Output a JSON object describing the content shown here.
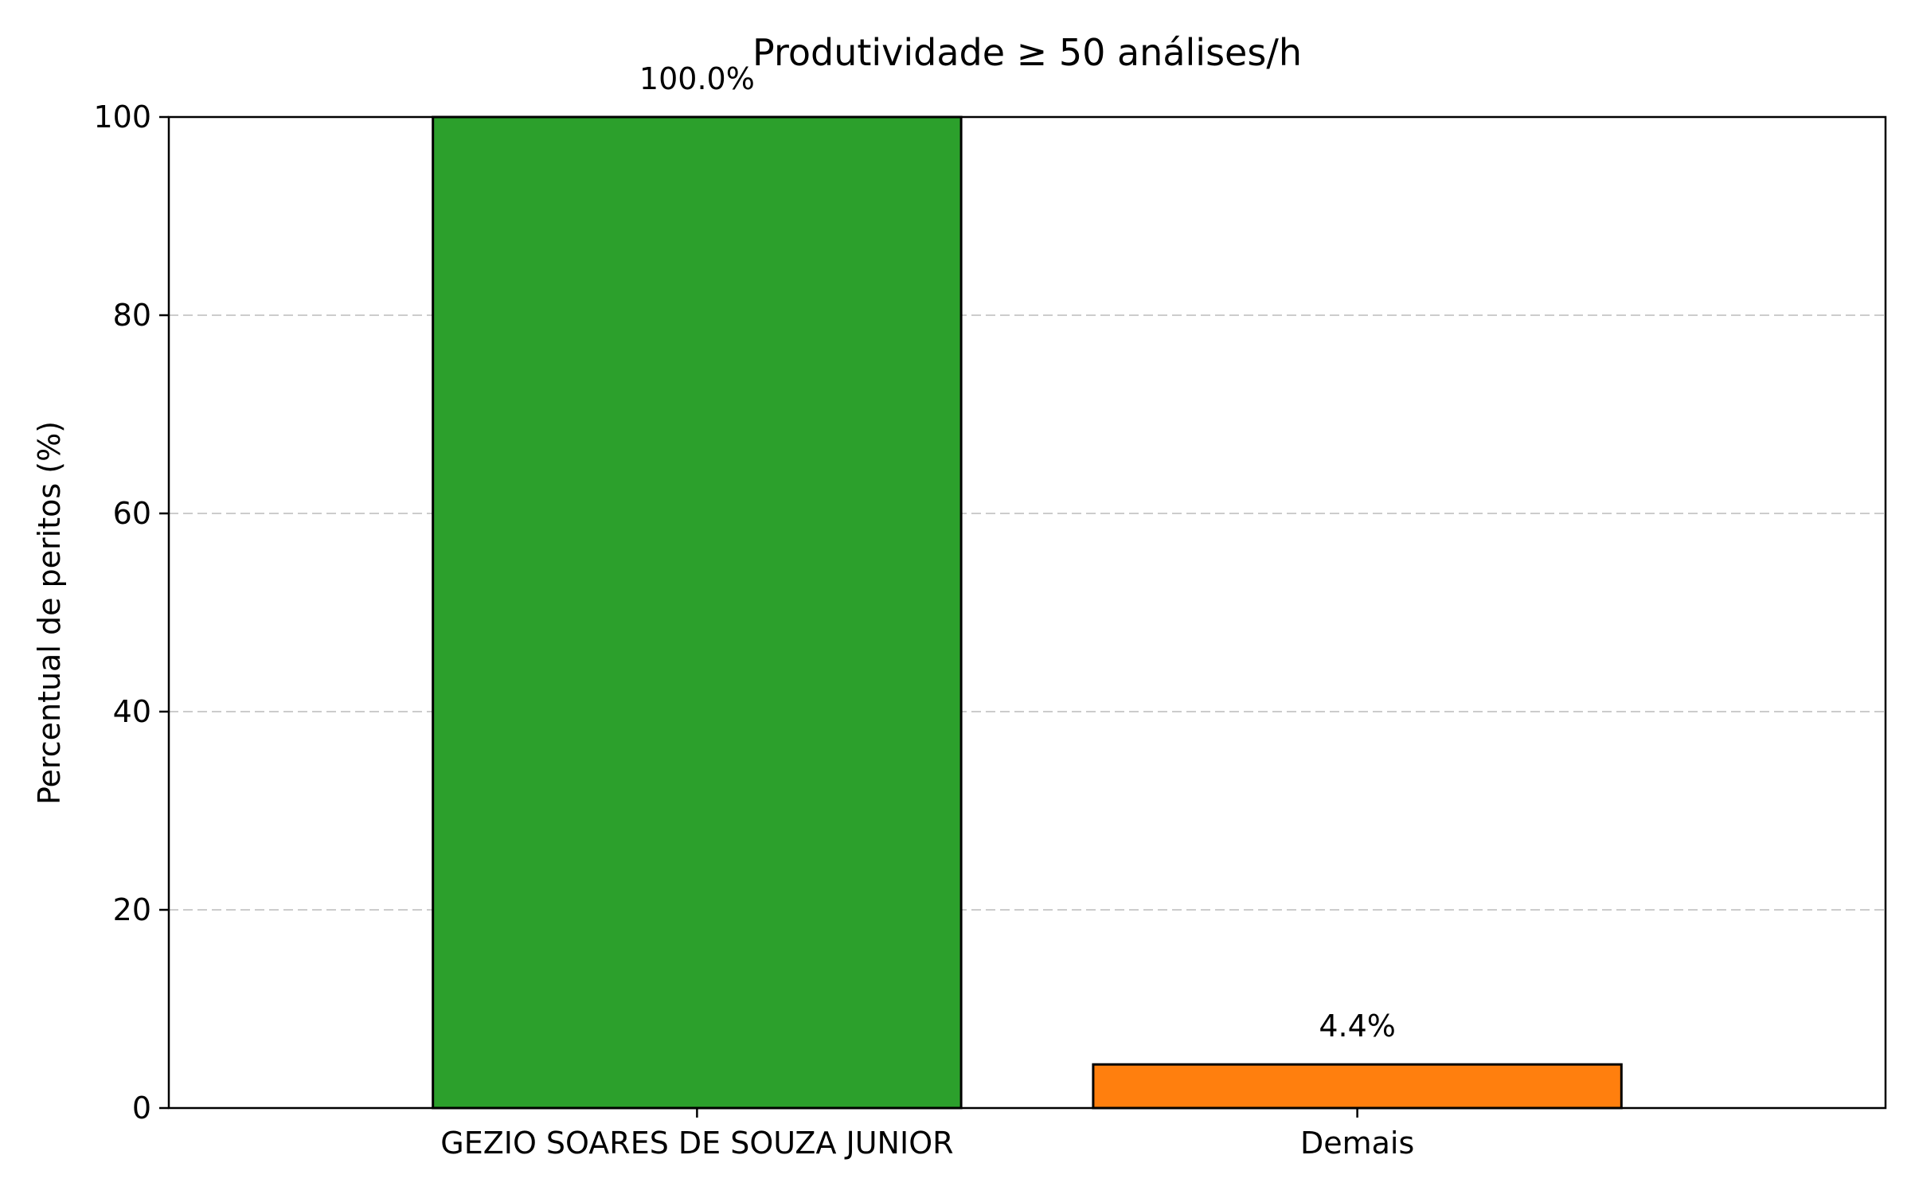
{
  "chart_data": {
    "type": "bar",
    "title": "Produtividade ≥ 50 análises/h",
    "xlabel": "",
    "ylabel": "Percentual de peritos (%)",
    "categories": [
      "GEZIO SOARES DE SOUZA JUNIOR",
      "Demais"
    ],
    "values": [
      100.0,
      4.4
    ],
    "value_labels": [
      "100.0%",
      "4.4%"
    ],
    "colors": [
      "#2ca02c",
      "#ff7f0e"
    ],
    "ylim": [
      0,
      100
    ],
    "yticks": [
      0,
      20,
      40,
      60,
      80,
      100
    ],
    "ytick_labels": [
      "0",
      "20",
      "40",
      "60",
      "80",
      "100"
    ],
    "grid": "y-dashed",
    "legend": "none"
  }
}
